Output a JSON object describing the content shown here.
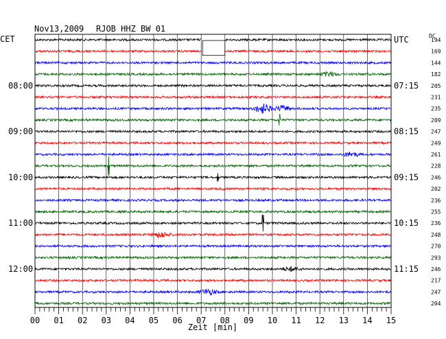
{
  "header": {
    "date": "Nov13,2009",
    "station": "RJOB HHZ BW 01",
    "left_tz": "CET",
    "right_tz": "UTC",
    "dc_label": "DC"
  },
  "chart_data": {
    "type": "line",
    "title": "Nov13,2009  RJOB HHZ BW 01",
    "xlabel": "Zeit [min]",
    "xlim": [
      0,
      15
    ],
    "x_ticks": [
      "00",
      "01",
      "02",
      "03",
      "04",
      "05",
      "06",
      "07",
      "08",
      "09",
      "10",
      "11",
      "12",
      "13",
      "14",
      "15"
    ],
    "left_time_labels": [
      {
        "row": 4,
        "label": "08:00"
      },
      {
        "row": 8,
        "label": "09:00"
      },
      {
        "row": 12,
        "label": "10:00"
      },
      {
        "row": 16,
        "label": "11:00"
      },
      {
        "row": 20,
        "label": "12:00"
      }
    ],
    "right_time_labels": [
      {
        "row": 0,
        "label": "UTC"
      },
      {
        "row": 4,
        "label": "07:15"
      },
      {
        "row": 8,
        "label": "08:15"
      },
      {
        "row": 12,
        "label": "09:15"
      },
      {
        "row": 16,
        "label": "10:15"
      },
      {
        "row": 20,
        "label": "11:15"
      }
    ],
    "trace_colors": [
      "#000000",
      "#ff0000",
      "#0000ff",
      "#006400"
    ],
    "dc_values": [
      "194",
      "169",
      "144",
      "182",
      "205",
      "231",
      "235",
      "209",
      "247",
      "249",
      "261",
      "228",
      "246",
      "202",
      "236",
      "255",
      "236",
      "248",
      "270",
      "293",
      "246",
      "217",
      "247",
      "204"
    ],
    "events": [
      {
        "row": 0,
        "x_min": 7.0,
        "type": "gap",
        "x_end_min": 8.0
      },
      {
        "row": 1,
        "x_min": 7.0,
        "type": "gap",
        "x_end_min": 8.0
      },
      {
        "row": 3,
        "x_min": 12.4,
        "type": "burst",
        "amp": 3
      },
      {
        "row": 6,
        "x_min": 9.6,
        "type": "burst",
        "amp": 7
      },
      {
        "row": 6,
        "x_min": 10.4,
        "type": "burst",
        "amp": 4
      },
      {
        "row": 7,
        "x_min": 10.3,
        "type": "spike",
        "amp": 8
      },
      {
        "row": 10,
        "x_min": 13.3,
        "type": "burst",
        "amp": 3
      },
      {
        "row": 11,
        "x_min": 3.1,
        "type": "spike",
        "amp": 14
      },
      {
        "row": 12,
        "x_min": 7.7,
        "type": "spike",
        "amp": 6
      },
      {
        "row": 16,
        "x_min": 9.6,
        "type": "spike",
        "amp": 12
      },
      {
        "row": 17,
        "x_min": 5.3,
        "type": "burst",
        "amp": 4
      },
      {
        "row": 20,
        "x_min": 10.8,
        "type": "burst",
        "amp": 3
      },
      {
        "row": 22,
        "x_min": 7.3,
        "type": "burst",
        "amp": 4
      }
    ],
    "grid": true
  }
}
